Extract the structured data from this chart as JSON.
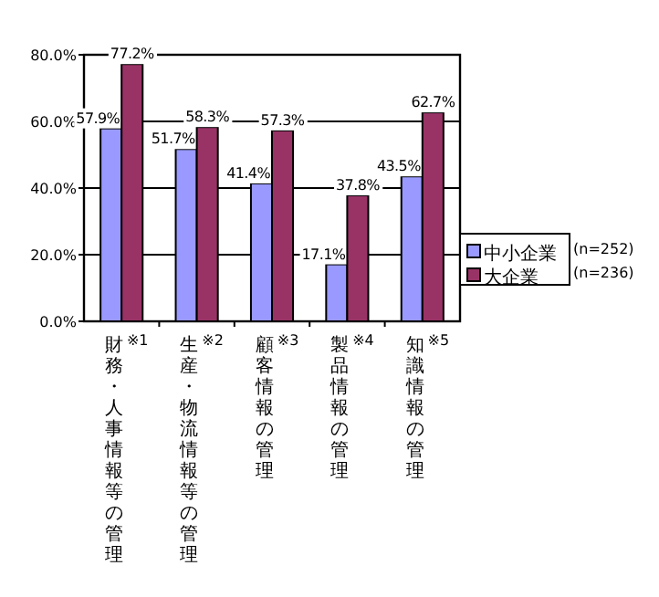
{
  "chart_data": {
    "type": "bar",
    "categories": [
      "財務・人事情報等の管理※1",
      "生産・物流情報等の管理※2",
      "顧客情報の管理※3",
      "製品情報の管理※4",
      "知識情報の管理※5"
    ],
    "series": [
      {
        "name": "中小企業",
        "color": "#9999ff",
        "values": [
          57.9,
          51.7,
          41.4,
          17.1,
          43.5
        ],
        "value_labels": [
          "57.9%",
          "51.7%",
          "41.4%",
          "17.1%",
          "43.5%"
        ]
      },
      {
        "name": "大企業",
        "color": "#993366",
        "values": [
          77.2,
          58.3,
          57.3,
          37.8,
          62.7
        ],
        "value_labels": [
          "77.2%",
          "58.3%",
          "57.3%",
          "37.8%",
          "62.7%"
        ]
      }
    ],
    "ylim": [
      0,
      80
    ],
    "yticks": [
      {
        "value": 0,
        "label": "0.0%"
      },
      {
        "value": 20,
        "label": "20.0%"
      },
      {
        "value": 40,
        "label": "40.0%"
      },
      {
        "value": 60,
        "label": "60.0%"
      },
      {
        "value": 80,
        "label": "80.0%"
      }
    ],
    "grid": "y",
    "legend": "right",
    "annotations": [
      "(n=252)",
      "(n=236)"
    ]
  }
}
